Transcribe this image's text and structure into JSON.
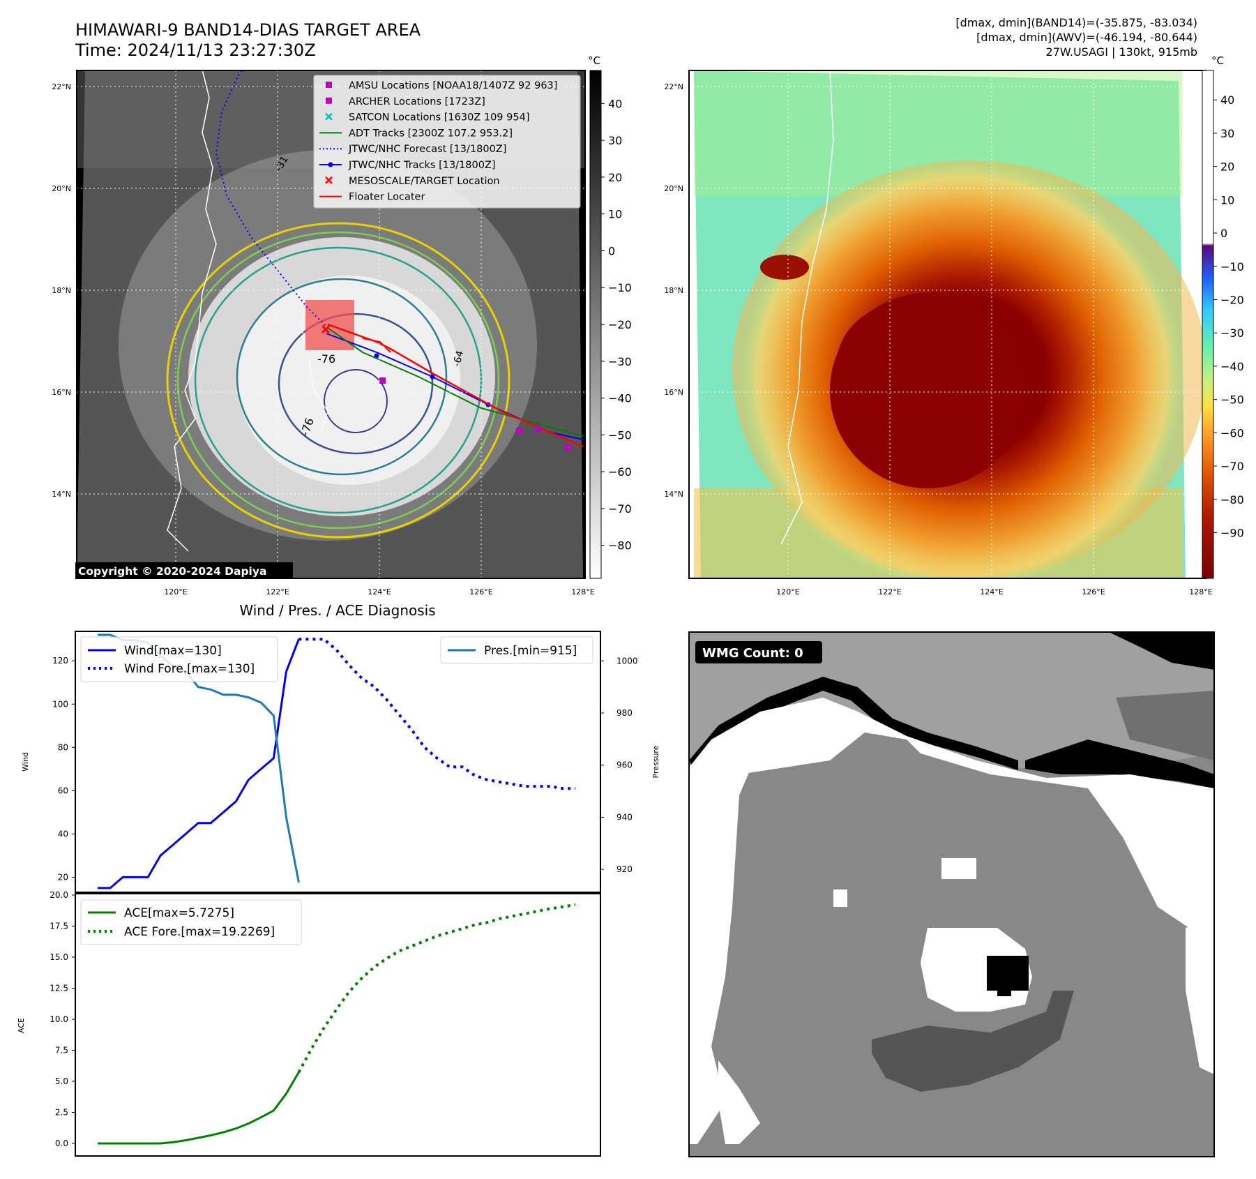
{
  "header": {
    "title_line1": "HIMAWARI-9 BAND14-DIAS TARGET AREA",
    "title_line2": "Time: 2024/11/13 23:27:30Z",
    "info_line1": "[dmax, dmin](BAND14)=(-35.875, -83.034)",
    "info_line2": "[dmax, dmin](AWV)=(-46.194, -80.644)",
    "info_line3": "27W.USAGI | 130kt, 915mb"
  },
  "map": {
    "lat_labels": [
      "22°N",
      "20°N",
      "18°N",
      "16°N",
      "14°N"
    ],
    "lon_labels": [
      "120°E",
      "122°E",
      "124°E",
      "126°E",
      "128°E"
    ],
    "copyright": "Copyright © 2020-2024 Dapiya",
    "contour_labels": [
      "-76",
      "-76",
      "-64",
      "-31"
    ],
    "legend": [
      {
        "label": "AMSU Locations [NOAA18/1407Z 92 963]",
        "marker": "square",
        "color": "#c000c0"
      },
      {
        "label": "ARCHER Locations [1723Z]",
        "marker": "square",
        "color": "#c000c0"
      },
      {
        "label": "SATCON Locations [1630Z 109 954]",
        "marker": "x",
        "color": "#00bfbf"
      },
      {
        "label": "ADT Tracks [2300Z 107.2 953.2]",
        "marker": "line",
        "color": "#008000"
      },
      {
        "label": "JTWC/NHC Forecast [13/1800Z]",
        "marker": "dotted",
        "color": "#0000ff"
      },
      {
        "label": "JTWC/NHC Tracks [13/1800Z]",
        "marker": "line-dot",
        "color": "#0000ff"
      },
      {
        "label": "MESOSCALE/TARGET Location",
        "marker": "x",
        "color": "#ff0000"
      },
      {
        "label": "Floater Locater",
        "marker": "line",
        "color": "#ff0000"
      }
    ],
    "colorbar_left": {
      "unit": "°C",
      "ticks": [
        "40",
        "30",
        "20",
        "10",
        "0",
        "−10",
        "−20",
        "−30",
        "−40",
        "−50",
        "−60",
        "−70",
        "−80"
      ]
    },
    "colorbar_right": {
      "unit": "°C",
      "ticks": [
        "40",
        "30",
        "20",
        "10",
        "0",
        "−10",
        "−20",
        "−30",
        "−40",
        "−50",
        "−60",
        "−70",
        "−80",
        "−90"
      ]
    }
  },
  "wmg": {
    "badge": "WMG Count: 0"
  },
  "colors": {
    "wind": "#0000ee",
    "pressure": "#1f77b4",
    "ace": "#008000",
    "eye": "#8b0000"
  },
  "chart_data": [
    {
      "type": "line",
      "title": "Wind / Pres. / ACE Diagnosis",
      "ylabel": "Wind",
      "y2label": "Pressure",
      "ylim": [
        14,
        132
      ],
      "y2lim": [
        912,
        1010
      ],
      "yticks": [
        20,
        40,
        60,
        80,
        100,
        120
      ],
      "y2ticks": [
        920,
        940,
        960,
        980,
        1000
      ],
      "legend_left": [
        "Wind[max=130]",
        "Wind Fore.[max=130]"
      ],
      "legend_right": [
        "Pres.[min=915]"
      ],
      "series": [
        {
          "name": "Wind[max=130]",
          "style": "solid",
          "axis": "left",
          "x": [
            0,
            1,
            2,
            3,
            4,
            5,
            6,
            7,
            8,
            9,
            10,
            11,
            12,
            13,
            14,
            15
          ],
          "values": [
            15,
            15,
            20,
            20,
            20,
            30,
            35,
            40,
            45,
            45,
            50,
            55,
            65,
            70,
            75,
            115
          ]
        },
        {
          "name": "Wind[max=130]",
          "style": "solid",
          "axis": "left",
          "x": [
            15,
            16
          ],
          "values": [
            115,
            130
          ]
        },
        {
          "name": "Wind Fore.[max=130]",
          "style": "dotted",
          "axis": "left",
          "x": [
            16,
            17,
            18,
            19,
            20,
            21,
            22,
            23,
            24,
            25,
            26,
            27,
            28,
            29,
            30,
            31,
            32,
            33,
            34,
            35,
            36,
            37,
            38
          ],
          "values": [
            130,
            130,
            130,
            125,
            118,
            112,
            108,
            102,
            95,
            88,
            80,
            75,
            71,
            71,
            67,
            65,
            64,
            63,
            62,
            62,
            62,
            61,
            61
          ]
        },
        {
          "name": "Pres.[min=915]",
          "style": "solid",
          "axis": "right",
          "x": [
            0,
            1,
            2,
            3,
            4,
            5,
            6,
            7,
            8,
            9,
            10,
            11,
            12,
            13,
            14,
            15,
            16
          ],
          "values": [
            1010,
            1010,
            1008,
            1008,
            1007,
            1002,
            998,
            996,
            990,
            989,
            987,
            987,
            986,
            984,
            979,
            940,
            915
          ]
        }
      ]
    },
    {
      "type": "line",
      "title": "",
      "ylabel": "ACE",
      "ylim": [
        -0.9,
        20.0
      ],
      "yticks": [
        0.0,
        2.5,
        5.0,
        7.5,
        10.0,
        12.5,
        15.0,
        17.5,
        20.0
      ],
      "ytick_labels": [
        "0.0",
        "2.5",
        "5.0",
        "7.5",
        "10.0",
        "12.5",
        "15.0",
        "17.5",
        "20.0"
      ],
      "legend": [
        "ACE[max=5.7275]",
        "ACE Fore.[max=19.2269]"
      ],
      "series": [
        {
          "name": "ACE[max=5.7275]",
          "style": "solid",
          "x": [
            0,
            1,
            2,
            3,
            4,
            5,
            6,
            7,
            8,
            9,
            10,
            11,
            12,
            13,
            14,
            15,
            16
          ],
          "values": [
            0,
            0,
            0,
            0,
            0,
            0,
            0.1,
            0.25,
            0.45,
            0.65,
            0.9,
            1.2,
            1.6,
            2.1,
            2.65,
            4.0,
            5.73
          ]
        },
        {
          "name": "ACE Fore.[max=19.2269]",
          "style": "dotted",
          "x": [
            16,
            17,
            18,
            19,
            20,
            21,
            22,
            23,
            24,
            25,
            26,
            27,
            28,
            29,
            30,
            31,
            32,
            33,
            34,
            35,
            36,
            37,
            38
          ],
          "values": [
            5.73,
            7.6,
            9.3,
            10.8,
            12.2,
            13.3,
            14.2,
            14.9,
            15.5,
            15.9,
            16.3,
            16.7,
            17.0,
            17.3,
            17.6,
            17.8,
            18.1,
            18.3,
            18.5,
            18.7,
            18.9,
            19.05,
            19.23
          ]
        }
      ]
    }
  ]
}
